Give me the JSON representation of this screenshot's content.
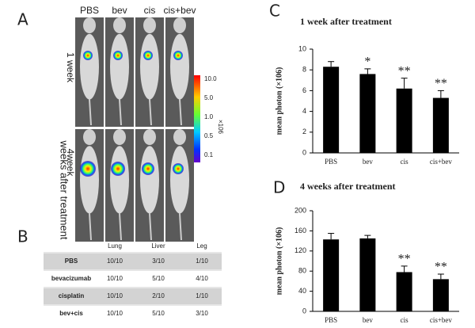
{
  "panel_a": {
    "label": "A",
    "groups": [
      "PBS",
      "bev",
      "cis",
      "cis+bev"
    ],
    "row_labels": [
      "1 week",
      "4week"
    ],
    "side_label": "weeks after treatment",
    "colorbar_ticks": [
      "10.0",
      "5.0",
      "1.0",
      "0.5",
      "0.1"
    ],
    "colorbar_unit": "×106"
  },
  "panel_b": {
    "label": "B",
    "table": {
      "header": [
        "Lung",
        "Liver",
        "Leg"
      ],
      "rows": [
        [
          "PBS",
          "10/10",
          "3/10",
          "1/10"
        ],
        [
          "bevacizumab",
          "10/10",
          "5/10",
          "4/10"
        ],
        [
          "cisplatin",
          "10/10",
          "2/10",
          "1/10"
        ],
        [
          "bev+cis",
          "10/10",
          "5/10",
          "3/10"
        ]
      ]
    }
  },
  "chart_data": [
    {
      "type": "bar",
      "panel": "C",
      "title": "1 week after treatment",
      "y_label": "mean photon (×106)",
      "categories": [
        "PBS",
        "bev",
        "cis",
        "cis+bev"
      ],
      "values": [
        8.3,
        7.6,
        6.2,
        5.3
      ],
      "errors": [
        0.5,
        0.5,
        1.0,
        0.7
      ],
      "value_annotations": [
        null,
        "*",
        "**",
        "**"
      ],
      "color": "#000000",
      "ylim": [
        0,
        10
      ],
      "yticks": [
        0,
        2,
        4,
        6,
        8,
        10
      ]
    },
    {
      "type": "bar",
      "panel": "D",
      "title": "4 weeks after treatment",
      "y_label": "mean photon (×106)",
      "categories": [
        "PBS",
        "bev",
        "cis",
        "cis+bev"
      ],
      "values": [
        143,
        145,
        78,
        64
      ],
      "errors": [
        12,
        6,
        12,
        10
      ],
      "value_annotations": [
        null,
        null,
        "**",
        "**"
      ],
      "color": "#000000",
      "ylim": [
        0,
        200
      ],
      "yticks": [
        0,
        40,
        80,
        120,
        160,
        200
      ]
    }
  ]
}
